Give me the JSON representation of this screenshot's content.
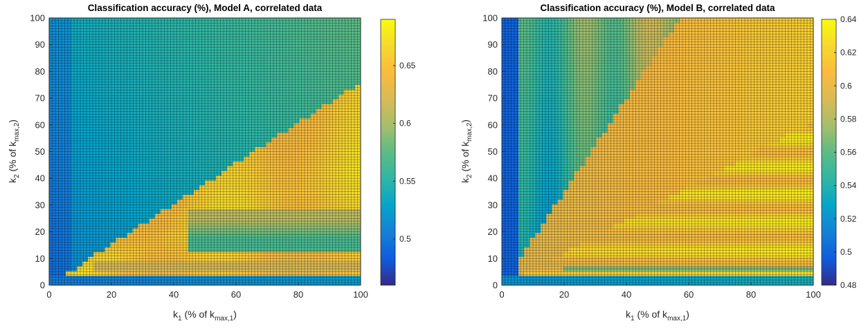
{
  "chart_data": [
    {
      "type": "heatmap",
      "title": "Classification accuracy (%), Model A, correlated data",
      "xlabel": {
        "base": "k",
        "sub": "1",
        "rest": " (% of k",
        "sub2": "max,1",
        "close": ")"
      },
      "ylabel": {
        "base": "k",
        "sub": "2",
        "rest": " (% of k",
        "sub2": "max,2",
        "close": ")"
      },
      "xlim": [
        0,
        100
      ],
      "ylim": [
        0,
        100
      ],
      "x_ticks": [
        "0",
        "20",
        "40",
        "60",
        "80",
        "100"
      ],
      "y_ticks": [
        "0",
        "10",
        "20",
        "30",
        "40",
        "50",
        "60",
        "70",
        "80",
        "90",
        "100"
      ],
      "colorbar": {
        "range": [
          0.46,
          0.69
        ],
        "ticks": [
          "0.5",
          "0.55",
          "0.6",
          "0.65"
        ],
        "colormap": "parula"
      },
      "grid": true,
      "description_values": {
        "diagonal_band": 0.65,
        "low_k1_region": 0.5,
        "lower_right_region": 0.65,
        "upper_right_region": 0.67,
        "bottom_rows": 0.5
      }
    },
    {
      "type": "heatmap",
      "title": "Classification accuracy (%), Model B, correlated data",
      "xlabel": {
        "base": "k",
        "sub": "1",
        "rest": " (% of k",
        "sub2": "max,1",
        "close": ")"
      },
      "ylabel": {
        "base": "k",
        "sub": "2",
        "rest": " (% of k",
        "sub2": "max,2",
        "close": ")"
      },
      "xlim": [
        0,
        100
      ],
      "ylim": [
        0,
        100
      ],
      "x_ticks": [
        "0",
        "20",
        "40",
        "60",
        "80",
        "100"
      ],
      "y_ticks": [
        "0",
        "10",
        "20",
        "30",
        "40",
        "50",
        "60",
        "70",
        "80",
        "90",
        "100"
      ],
      "colorbar": {
        "range": [
          0.48,
          0.64
        ],
        "ticks": [
          "0.48",
          "0.5",
          "0.52",
          "0.54",
          "0.56",
          "0.58",
          "0.6",
          "0.62",
          "0.64"
        ],
        "colormap": "parula"
      },
      "grid": true,
      "description_values": {
        "diagonal_band": 0.61,
        "low_k1_region": 0.5,
        "lower_right_region": 0.62,
        "upper_right_region": 0.63,
        "bottom_rows": 0.51
      }
    }
  ]
}
